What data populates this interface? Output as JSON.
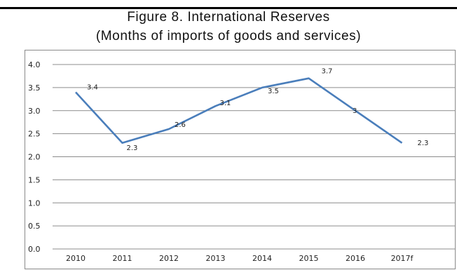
{
  "chart_data": {
    "type": "line",
    "title": "Figure 8. International Reserves",
    "subtitle": "(Months of imports of goods and services)",
    "xlabel": "",
    "ylabel": "",
    "categories": [
      "2010",
      "2011",
      "2012",
      "2013",
      "2014",
      "2015",
      "2016",
      "2017f"
    ],
    "series": [
      {
        "values": [
          3.4,
          2.3,
          2.6,
          3.1,
          3.5,
          3.7,
          3.0,
          2.3
        ],
        "data_labels": [
          "3.4",
          "2.3",
          "2.6",
          "3.1",
          "3.5",
          "3.7",
          "3",
          "2.3"
        ],
        "color": "#4a7ebb"
      }
    ],
    "ylim": [
      0,
      4.0
    ],
    "yticks": [
      "0.0",
      "0.5",
      "1.0",
      "1.5",
      "2.0",
      "2.5",
      "3.0",
      "3.5",
      "4.0"
    ],
    "grid": true,
    "legend": "none"
  }
}
